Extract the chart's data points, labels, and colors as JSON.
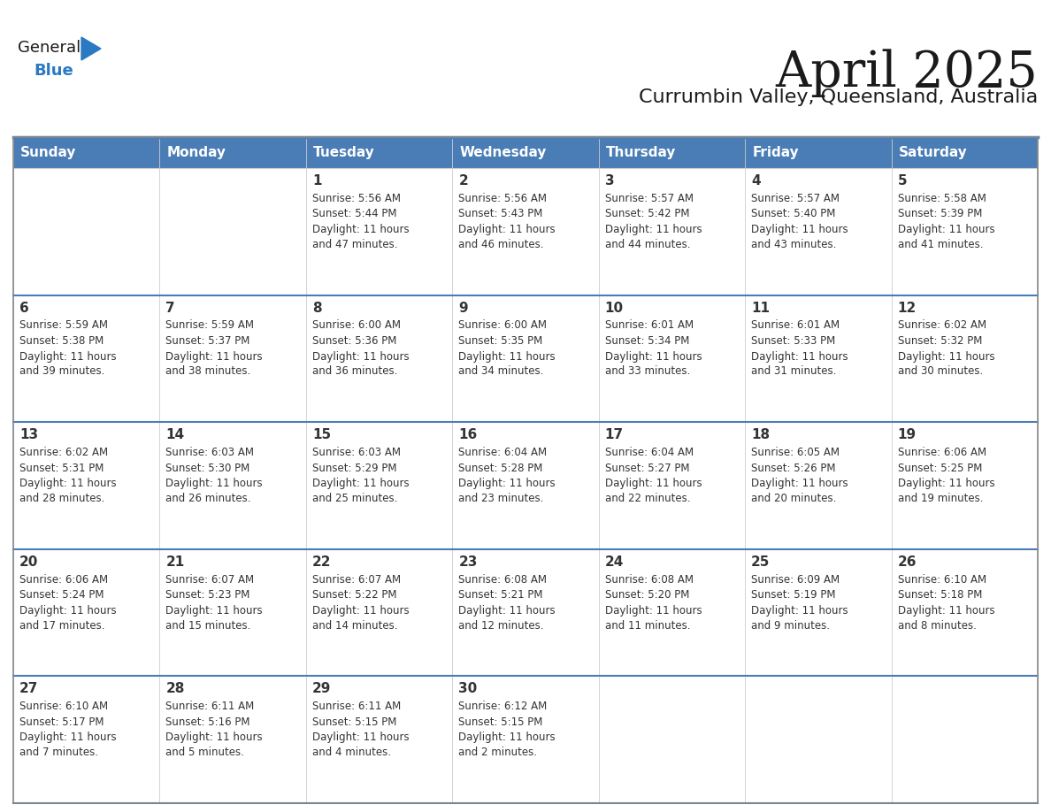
{
  "title": "April 2025",
  "subtitle": "Currumbin Valley, Queensland, Australia",
  "header_bg": "#4A7DB5",
  "header_text": "#FFFFFF",
  "cell_bg": "#FFFFFF",
  "row_separator_color": "#4A7DB5",
  "day_headers": [
    "Sunday",
    "Monday",
    "Tuesday",
    "Wednesday",
    "Thursday",
    "Friday",
    "Saturday"
  ],
  "title_color": "#1a1a1a",
  "subtitle_color": "#1a1a1a",
  "logo_general_color": "#1a1a1a",
  "logo_blue_color": "#2B79C2",
  "date_color": "#333333",
  "text_color": "#333333",
  "days": [
    {
      "date": 1,
      "col": 2,
      "row": 0,
      "sunrise": "5:56 AM",
      "sunset": "5:44 PM",
      "daylight": "11 hours and 47 minutes."
    },
    {
      "date": 2,
      "col": 3,
      "row": 0,
      "sunrise": "5:56 AM",
      "sunset": "5:43 PM",
      "daylight": "11 hours and 46 minutes."
    },
    {
      "date": 3,
      "col": 4,
      "row": 0,
      "sunrise": "5:57 AM",
      "sunset": "5:42 PM",
      "daylight": "11 hours and 44 minutes."
    },
    {
      "date": 4,
      "col": 5,
      "row": 0,
      "sunrise": "5:57 AM",
      "sunset": "5:40 PM",
      "daylight": "11 hours and 43 minutes."
    },
    {
      "date": 5,
      "col": 6,
      "row": 0,
      "sunrise": "5:58 AM",
      "sunset": "5:39 PM",
      "daylight": "11 hours and 41 minutes."
    },
    {
      "date": 6,
      "col": 0,
      "row": 1,
      "sunrise": "5:59 AM",
      "sunset": "5:38 PM",
      "daylight": "11 hours and 39 minutes."
    },
    {
      "date": 7,
      "col": 1,
      "row": 1,
      "sunrise": "5:59 AM",
      "sunset": "5:37 PM",
      "daylight": "11 hours and 38 minutes."
    },
    {
      "date": 8,
      "col": 2,
      "row": 1,
      "sunrise": "6:00 AM",
      "sunset": "5:36 PM",
      "daylight": "11 hours and 36 minutes."
    },
    {
      "date": 9,
      "col": 3,
      "row": 1,
      "sunrise": "6:00 AM",
      "sunset": "5:35 PM",
      "daylight": "11 hours and 34 minutes."
    },
    {
      "date": 10,
      "col": 4,
      "row": 1,
      "sunrise": "6:01 AM",
      "sunset": "5:34 PM",
      "daylight": "11 hours and 33 minutes."
    },
    {
      "date": 11,
      "col": 5,
      "row": 1,
      "sunrise": "6:01 AM",
      "sunset": "5:33 PM",
      "daylight": "11 hours and 31 minutes."
    },
    {
      "date": 12,
      "col": 6,
      "row": 1,
      "sunrise": "6:02 AM",
      "sunset": "5:32 PM",
      "daylight": "11 hours and 30 minutes."
    },
    {
      "date": 13,
      "col": 0,
      "row": 2,
      "sunrise": "6:02 AM",
      "sunset": "5:31 PM",
      "daylight": "11 hours and 28 minutes."
    },
    {
      "date": 14,
      "col": 1,
      "row": 2,
      "sunrise": "6:03 AM",
      "sunset": "5:30 PM",
      "daylight": "11 hours and 26 minutes."
    },
    {
      "date": 15,
      "col": 2,
      "row": 2,
      "sunrise": "6:03 AM",
      "sunset": "5:29 PM",
      "daylight": "11 hours and 25 minutes."
    },
    {
      "date": 16,
      "col": 3,
      "row": 2,
      "sunrise": "6:04 AM",
      "sunset": "5:28 PM",
      "daylight": "11 hours and 23 minutes."
    },
    {
      "date": 17,
      "col": 4,
      "row": 2,
      "sunrise": "6:04 AM",
      "sunset": "5:27 PM",
      "daylight": "11 hours and 22 minutes."
    },
    {
      "date": 18,
      "col": 5,
      "row": 2,
      "sunrise": "6:05 AM",
      "sunset": "5:26 PM",
      "daylight": "11 hours and 20 minutes."
    },
    {
      "date": 19,
      "col": 6,
      "row": 2,
      "sunrise": "6:06 AM",
      "sunset": "5:25 PM",
      "daylight": "11 hours and 19 minutes."
    },
    {
      "date": 20,
      "col": 0,
      "row": 3,
      "sunrise": "6:06 AM",
      "sunset": "5:24 PM",
      "daylight": "11 hours and 17 minutes."
    },
    {
      "date": 21,
      "col": 1,
      "row": 3,
      "sunrise": "6:07 AM",
      "sunset": "5:23 PM",
      "daylight": "11 hours and 15 minutes."
    },
    {
      "date": 22,
      "col": 2,
      "row": 3,
      "sunrise": "6:07 AM",
      "sunset": "5:22 PM",
      "daylight": "11 hours and 14 minutes."
    },
    {
      "date": 23,
      "col": 3,
      "row": 3,
      "sunrise": "6:08 AM",
      "sunset": "5:21 PM",
      "daylight": "11 hours and 12 minutes."
    },
    {
      "date": 24,
      "col": 4,
      "row": 3,
      "sunrise": "6:08 AM",
      "sunset": "5:20 PM",
      "daylight": "11 hours and 11 minutes."
    },
    {
      "date": 25,
      "col": 5,
      "row": 3,
      "sunrise": "6:09 AM",
      "sunset": "5:19 PM",
      "daylight": "11 hours and 9 minutes."
    },
    {
      "date": 26,
      "col": 6,
      "row": 3,
      "sunrise": "6:10 AM",
      "sunset": "5:18 PM",
      "daylight": "11 hours and 8 minutes."
    },
    {
      "date": 27,
      "col": 0,
      "row": 4,
      "sunrise": "6:10 AM",
      "sunset": "5:17 PM",
      "daylight": "11 hours and 7 minutes."
    },
    {
      "date": 28,
      "col": 1,
      "row": 4,
      "sunrise": "6:11 AM",
      "sunset": "5:16 PM",
      "daylight": "11 hours and 5 minutes."
    },
    {
      "date": 29,
      "col": 2,
      "row": 4,
      "sunrise": "6:11 AM",
      "sunset": "5:15 PM",
      "daylight": "11 hours and 4 minutes."
    },
    {
      "date": 30,
      "col": 3,
      "row": 4,
      "sunrise": "6:12 AM",
      "sunset": "5:15 PM",
      "daylight": "11 hours and 2 minutes."
    }
  ]
}
